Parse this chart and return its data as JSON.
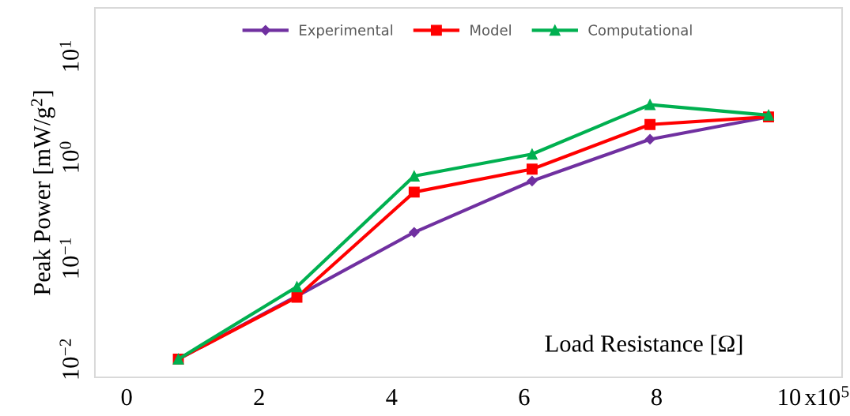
{
  "chart_data": {
    "type": "line",
    "xlabel": "Load Resistance [Ω]",
    "ylabel": "Peak Power [mW/g$^{2}$]",
    "x": [
      0.78,
      2.57,
      4.34,
      6.12,
      7.9,
      9.69
    ],
    "series": [
      {
        "name": "Experimental",
        "color": "#7030a0",
        "marker": "diamond",
        "values": [
          0.01,
          0.042,
          0.18,
          0.58,
          1.5,
          2.5
        ]
      },
      {
        "name": "Model",
        "color": "#ff0000",
        "marker": "square",
        "values": [
          0.01,
          0.041,
          0.45,
          0.76,
          2.1,
          2.5
        ]
      },
      {
        "name": "Computational",
        "color": "#00b050",
        "marker": "triangle",
        "values": [
          0.01,
          0.052,
          0.65,
          1.07,
          3.3,
          2.6
        ]
      }
    ],
    "log": "y",
    "xlim": [
      -0.48,
      10.8
    ],
    "ylim": [
      0.0066,
      30
    ],
    "xticks": [
      0,
      2,
      4,
      6,
      8,
      10
    ],
    "annotations": [
      "x10$^{5}$"
    ],
    "yticks": [
      {
        "value": 0.01,
        "label": "10$^{−2}$"
      },
      {
        "value": 0.1,
        "label": "10$^{−1}$"
      },
      {
        "value": 1,
        "label": "10$^{0}$"
      },
      {
        "value": 10,
        "label": "10$^{1}$"
      }
    ],
    "grid": false,
    "legend": "top",
    "line_style": "solid"
  }
}
